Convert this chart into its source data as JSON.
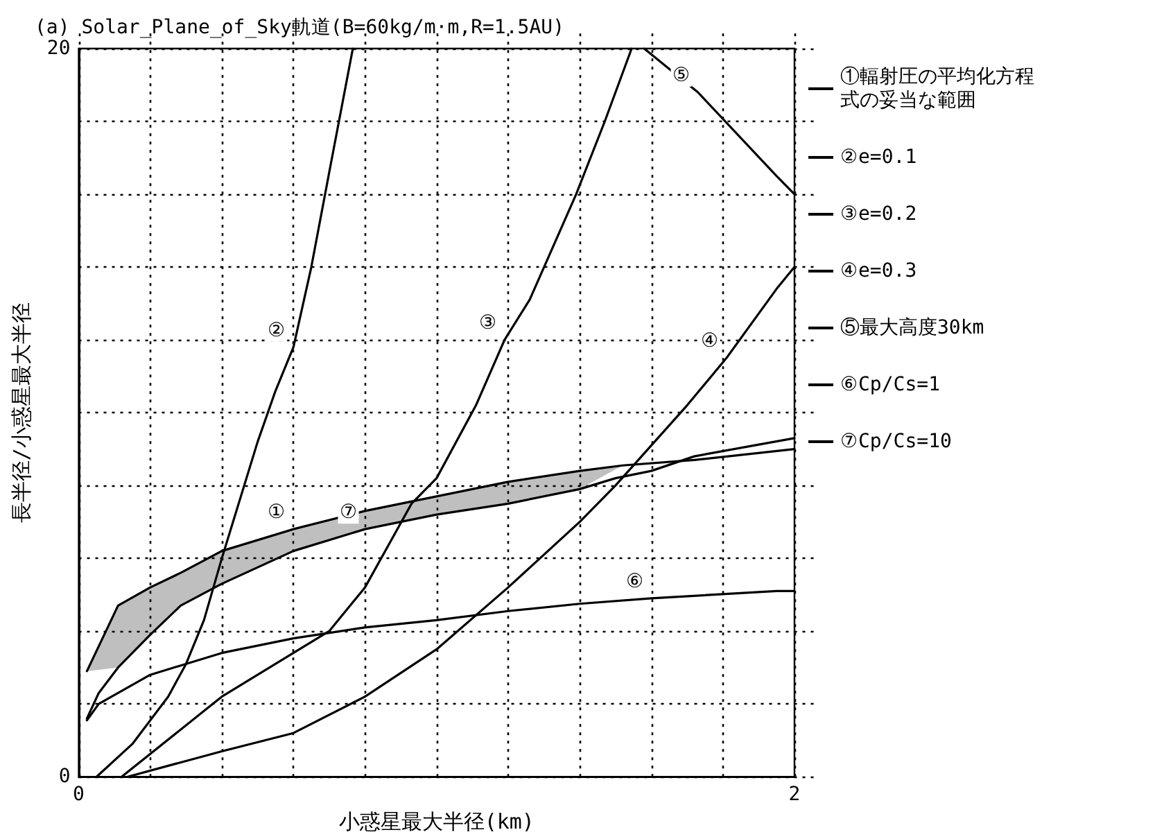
{
  "chart_data": {
    "type": "line",
    "title": "(a) Solar_Plane_of_Sky軌道(B=60kg/m·m,R=1.5AU)",
    "xlabel": "小惑星最大半径(km)",
    "ylabel": "長半径/小惑星最大半径",
    "xlim": [
      0,
      2
    ],
    "xticks": [
      0,
      {
        "value": 0.2,
        "label": null
      },
      {
        "value": 0.4,
        "label": null
      },
      {
        "value": 0.6,
        "label": null
      },
      {
        "value": 0.8,
        "label": null
      },
      {
        "value": 1,
        "label": null
      },
      {
        "value": 1.2,
        "label": null
      },
      {
        "value": 1.4,
        "label": null
      },
      {
        "value": 1.6,
        "label": null
      },
      {
        "value": 1.8,
        "label": null
      },
      2
    ],
    "ylim": [
      0,
      20
    ],
    "yticks": [
      0,
      {
        "value": 2,
        "label": null
      },
      {
        "value": 4,
        "label": null
      },
      {
        "value": 6,
        "label": null
      },
      {
        "value": 8,
        "label": null
      },
      {
        "value": 10,
        "label": null
      },
      {
        "value": 12,
        "label": null
      },
      {
        "value": 14,
        "label": null
      },
      {
        "value": 16,
        "label": null
      },
      {
        "value": 18,
        "label": null
      },
      20
    ],
    "grid": true,
    "legend": "right",
    "marker": "none",
    "series": [
      {
        "name": "①輻射圧の平均化方程式の妥当な範囲",
        "color": "#000000",
        "x": [
          0.023,
          0.11,
          0.2,
          0.285,
          0.4,
          0.6,
          0.8,
          1.0,
          1.2,
          1.4,
          1.52,
          1.72,
          2.0
        ],
        "values": [
          2.9,
          4.7,
          5.2,
          5.6,
          6.2,
          6.8,
          7.3,
          7.7,
          8.1,
          8.4,
          8.55,
          8.7,
          9.0
        ],
        "lower": [
          2.9,
          3.0,
          3.9,
          4.7,
          5.3,
          6.2,
          6.8,
          7.2,
          7.5,
          7.9,
          8.55,
          null,
          null
        ],
        "upper": [
          2.9,
          4.7,
          5.2,
          5.6,
          6.2,
          6.8,
          7.3,
          7.7,
          8.1,
          8.4,
          8.55,
          null,
          null
        ]
      },
      {
        "name": "②e=0.1",
        "color": "#000000",
        "x": [
          0.05,
          0.15,
          0.25,
          0.3,
          0.35,
          0.4,
          0.45,
          0.5,
          0.55,
          0.6,
          0.65,
          0.7,
          0.766
        ],
        "values": [
          0,
          0.9,
          2.2,
          3.1,
          4.3,
          6.0,
          7.6,
          9.2,
          10.6,
          11.8,
          14.0,
          16.6,
          20
        ]
      },
      {
        "name": "③e=0.2",
        "color": "#000000",
        "x": [
          0.12,
          0.4,
          0.6,
          0.7,
          0.8,
          0.93,
          1.0,
          1.11,
          1.19,
          1.26,
          1.39,
          1.47,
          1.545
        ],
        "values": [
          0,
          2.2,
          3.4,
          4.0,
          5.2,
          7.5,
          8.2,
          10.2,
          12.0,
          13.1,
          16,
          18,
          20
        ]
      },
      {
        "name": "④e=0.3",
        "color": "#000000",
        "x": [
          0.137,
          0.4,
          0.6,
          0.8,
          1.0,
          1.2,
          1.4,
          1.5,
          1.6,
          1.7,
          1.81,
          1.95,
          2.0
        ],
        "values": [
          0,
          0.7,
          1.2,
          2.2,
          3.5,
          5.2,
          7.0,
          8.0,
          9.1,
          10.2,
          11.5,
          13.4,
          14.0
        ]
      },
      {
        "name": "⑤最大高度30km",
        "color": "#000000",
        "x": [
          1.58,
          1.73,
          1.95,
          2.0
        ],
        "values": [
          20,
          18.8,
          16.5,
          16.0
        ]
      },
      {
        "name": "⑥Cp/Cs=1",
        "color": "#000000",
        "x": [
          0.023,
          0.056,
          0.2,
          0.4,
          0.6,
          0.8,
          1.0,
          1.2,
          1.4,
          1.6,
          1.95,
          2.0
        ],
        "values": [
          1.55,
          2.0,
          2.8,
          3.4,
          3.8,
          4.1,
          4.3,
          4.55,
          4.75,
          4.9,
          5.1,
          5.1
        ]
      },
      {
        "name": "⑦Cp/Cs=10",
        "color": "#000000",
        "x": [
          0.023,
          0.056,
          0.11,
          0.2,
          0.285,
          0.4,
          0.6,
          0.8,
          1.0,
          1.2,
          1.4,
          1.5,
          1.6,
          1.72,
          2.0
        ],
        "values": [
          1.6,
          2.3,
          3.0,
          3.9,
          4.7,
          5.3,
          6.2,
          6.8,
          7.2,
          7.5,
          7.9,
          8.2,
          8.4,
          8.8,
          9.3
        ]
      }
    ],
    "annotations": [
      {
        "text": "②",
        "x": 0.6,
        "y": 11.8
      },
      {
        "text": "③",
        "x": 1.19,
        "y": 12.0
      },
      {
        "text": "④",
        "x": 1.81,
        "y": 11.5
      },
      {
        "text": "⑤",
        "x": 1.73,
        "y": 18.8
      },
      {
        "text": "①",
        "x": 0.6,
        "y": 6.8
      },
      {
        "text": "⑦",
        "x": 0.8,
        "y": 6.8
      },
      {
        "text": "⑥",
        "x": 1.6,
        "y": 4.9
      }
    ]
  }
}
